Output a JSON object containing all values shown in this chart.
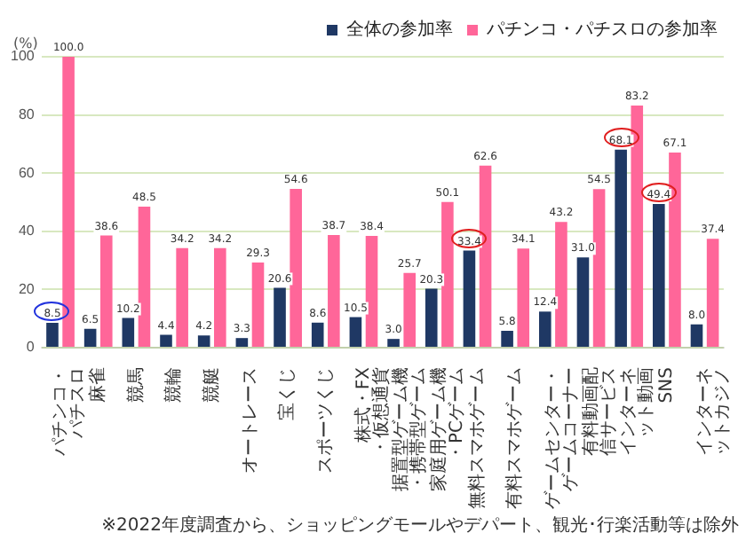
{
  "chart_data": {
    "type": "bar",
    "ylabel": "(%)",
    "categories": [
      "パチンコ・パチスロ",
      "麻雀",
      "競馬",
      "競輪",
      "競艇",
      "オートレース",
      "宝くじ",
      "スポーツくじ",
      "株式・FX・仮想通貨",
      "据置型ゲーム機・携帯型ゲーム",
      "家庭用ゲーム機・PCゲーム",
      "無料スマホゲーム",
      "有料スマホゲーム",
      "ゲームセンター・ゲームコーナー",
      "有料動画配信サービス",
      "インターネット動画",
      "SNS",
      "インターネットカジノ"
    ],
    "series": [
      {
        "name": "全体の参加率",
        "color": "#1f3864",
        "values": [
          8.5,
          6.5,
          10.2,
          4.4,
          4.2,
          3.3,
          20.6,
          8.6,
          10.5,
          3.0,
          20.3,
          33.4,
          5.8,
          12.4,
          31.0,
          68.1,
          49.4,
          8.0
        ],
        "value_labels": [
          "8.5",
          "6.5",
          "10.2",
          "4.4",
          "4.2",
          "3.3",
          "20.6",
          "8.6",
          "10.5",
          "3.0",
          "20.3",
          "33.4",
          "5.8",
          "12.4",
          "31.0",
          "68.1",
          "49.4",
          "8.0"
        ]
      },
      {
        "name": "パチンコ・パチスロの参加率",
        "color": "#ff6699",
        "values": [
          100.0,
          38.6,
          48.5,
          34.2,
          34.2,
          29.3,
          54.6,
          38.7,
          38.4,
          25.7,
          50.1,
          62.6,
          34.1,
          43.2,
          54.5,
          83.2,
          67.1,
          37.4
        ],
        "value_labels": [
          "100.0",
          "38.6",
          "48.5",
          "34.2",
          "34.2",
          "29.3",
          "54.6",
          "38.7",
          "38.4",
          "25.7",
          "50.1",
          "62.6",
          "34.1",
          "43.2",
          "54.5",
          "83.2",
          "67.1",
          "37.4"
        ]
      }
    ],
    "ylim": [
      0,
      100
    ],
    "yticks": [
      0,
      20,
      40,
      60,
      80,
      100
    ],
    "grid": "y",
    "legend": "top right",
    "annotations": [
      "※2022年度調査から、ショッピングモールやデパート、観光･行楽活動等は除外"
    ]
  }
}
